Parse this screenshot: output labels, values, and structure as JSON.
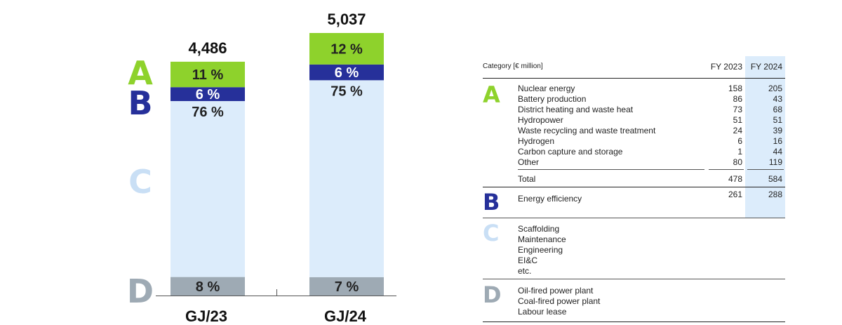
{
  "chart_data": {
    "type": "bar",
    "stacked": true,
    "categories": [
      "GJ/23",
      "GJ/24"
    ],
    "totals": [
      "4,486",
      "5,037"
    ],
    "total_values": [
      4486,
      5037
    ],
    "series": [
      {
        "key": "D",
        "percents": [
          8,
          7
        ],
        "labels": [
          "8 %",
          "7 %"
        ],
        "color": "#9eaab4",
        "text_color": "#222222"
      },
      {
        "key": "C",
        "percents": [
          76,
          75
        ],
        "labels": [
          "76 %",
          "75 %"
        ],
        "color": "#dcecfb",
        "text_color": "#222222"
      },
      {
        "key": "B",
        "percents": [
          6,
          6
        ],
        "labels": [
          "6 %",
          "6 %"
        ],
        "color": "#26309a",
        "text_color": "#ffffff"
      },
      {
        "key": "A",
        "percents": [
          11,
          12
        ],
        "labels": [
          "11 %",
          "12 %"
        ],
        "color": "#8ed22c",
        "text_color": "#222222"
      }
    ],
    "legend_letters": [
      "A",
      "B",
      "C",
      "D"
    ]
  },
  "letters": {
    "A": {
      "text": "A",
      "color": "#8ed22c"
    },
    "B": {
      "text": "B",
      "color": "#26309a"
    },
    "C": {
      "text": "C",
      "color": "#c9dff5"
    },
    "D": {
      "text": "D",
      "color": "#9eaab4"
    }
  },
  "table": {
    "header": {
      "category": "Category  [€ million]",
      "fy2023": "FY 2023",
      "fy2024": "FY 2024"
    },
    "section_a": {
      "rows": [
        {
          "label": "Nuclear energy",
          "fy2023": "158",
          "fy2024": "205"
        },
        {
          "label": "Battery production",
          "fy2023": "86",
          "fy2024": "43"
        },
        {
          "label": "District heating and waste heat",
          "fy2023": "73",
          "fy2024": "68"
        },
        {
          "label": "Hydropower",
          "fy2023": "51",
          "fy2024": "51"
        },
        {
          "label": "Waste recycling and waste treatment",
          "fy2023": "24",
          "fy2024": "39"
        },
        {
          "label": "Hydrogen",
          "fy2023": "6",
          "fy2024": "16"
        },
        {
          "label": "Carbon capture and storage",
          "fy2023": "1",
          "fy2024": "44"
        },
        {
          "label": "Other",
          "fy2023": "80",
          "fy2024": "119"
        }
      ],
      "total": {
        "label": "Total",
        "fy2023": "478",
        "fy2024": "584"
      }
    },
    "section_b": {
      "label": "Energy efficiency",
      "fy2023": "261",
      "fy2024": "288"
    },
    "section_c": {
      "items": [
        "Scaffolding",
        "Maintenance",
        "Engineering",
        "EI&C",
        "etc."
      ]
    },
    "section_d": {
      "items": [
        "Oil-fired power plant",
        "Coal-fired power plant",
        "Labour lease"
      ]
    }
  }
}
